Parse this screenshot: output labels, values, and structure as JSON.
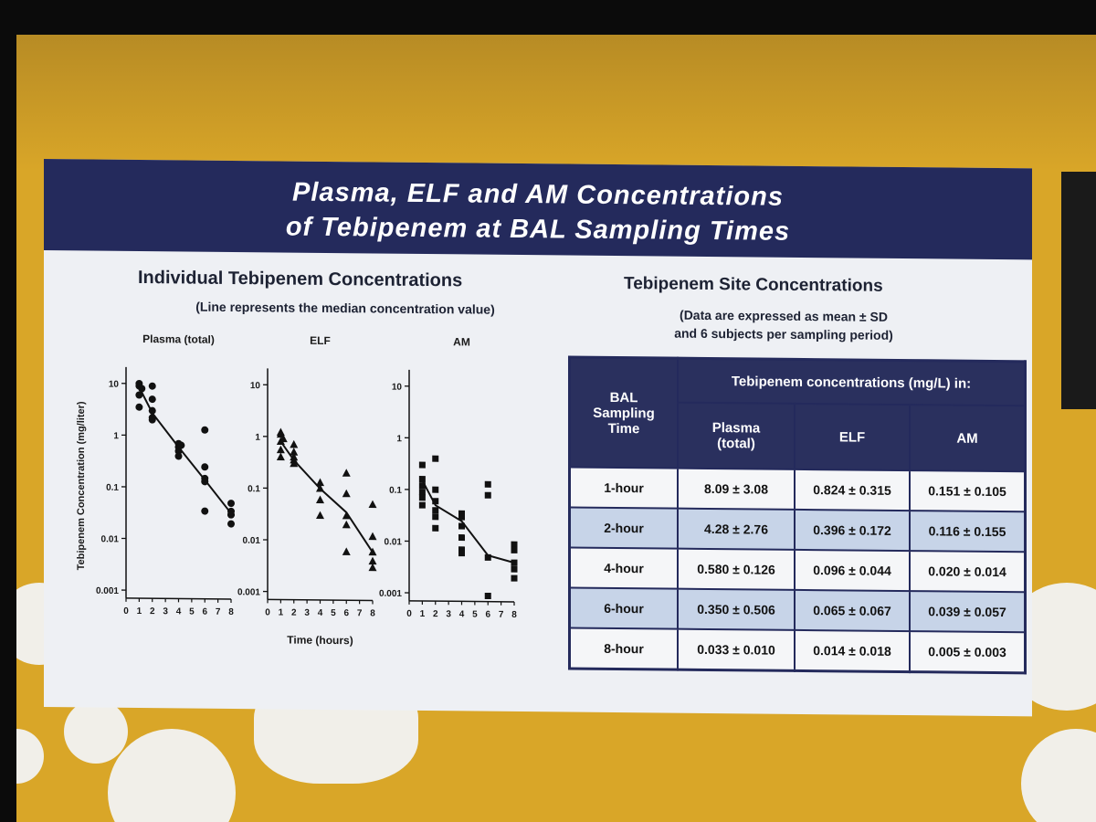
{
  "slide": {
    "title_line1": "Plasma, ELF and AM Concentrations",
    "title_line2": "of  Tebipenem at BAL Sampling Times"
  },
  "left_panel": {
    "heading": "Individual Tebipenem Concentrations",
    "subheading": "(Line represents the median concentration value)"
  },
  "right_panel": {
    "heading": "Tebipenem Site Concentrations",
    "note_line1": "(Data are expressed as mean ± SD",
    "note_line2": "and 6 subjects per sampling period)"
  },
  "table": {
    "row_header": [
      "BAL",
      "Sampling",
      "Time"
    ],
    "group_header": "Tebipenem concentrations (mg/L) in:",
    "columns": [
      [
        "Plasma",
        "(total)"
      ],
      [
        "ELF"
      ],
      [
        "AM"
      ]
    ],
    "rows": [
      {
        "time": "1-hour",
        "plasma": "8.09 ± 3.08",
        "elf": "0.824 ± 0.315",
        "am": "0.151 ± 0.105"
      },
      {
        "time": "2-hour",
        "plasma": "4.28 ± 2.76",
        "elf": "0.396 ± 0.172",
        "am": "0.116 ± 0.155"
      },
      {
        "time": "4-hour",
        "plasma": "0.580 ± 0.126",
        "elf": "0.096 ± 0.044",
        "am": "0.020 ± 0.014"
      },
      {
        "time": "6-hour",
        "plasma": "0.350 ± 0.506",
        "elf": "0.065 ± 0.067",
        "am": "0.039 ± 0.057"
      },
      {
        "time": "8-hour",
        "plasma": "0.033 ± 0.010",
        "elf": "0.014 ± 0.018",
        "am": "0.005 ± 0.003"
      }
    ]
  },
  "colors": {
    "title_bar": "#242a5c",
    "slide_bg": "#eef0f4",
    "screen_bg": "#d9a628",
    "row_alt": "#c7d4e8"
  },
  "chart_data": [
    {
      "type": "scatter",
      "title": "Plasma (total)",
      "ylabel": "Tebipenem Concentration (mg/liter)",
      "xlabel": "",
      "yscale": "log",
      "ylim": [
        0.0007,
        15
      ],
      "xlim": [
        0,
        8
      ],
      "x_ticks": [
        "0",
        "1",
        "2",
        "3",
        "4",
        "5",
        "6",
        "7",
        "8"
      ],
      "y_ticks": [
        "10",
        "1",
        "0.1",
        "0.01",
        "0.001"
      ],
      "marker": "circle",
      "points": [
        [
          1,
          10
        ],
        [
          1,
          9
        ],
        [
          1,
          6
        ],
        [
          1,
          3.5
        ],
        [
          1.2,
          8
        ],
        [
          2,
          9
        ],
        [
          2,
          5
        ],
        [
          2,
          3
        ],
        [
          2,
          2.2
        ],
        [
          2,
          2
        ],
        [
          4,
          0.7
        ],
        [
          4,
          0.6
        ],
        [
          4,
          0.5
        ],
        [
          4,
          0.4
        ],
        [
          4.2,
          0.65
        ],
        [
          6,
          1.3
        ],
        [
          6,
          0.25
        ],
        [
          6,
          0.15
        ],
        [
          6,
          0.13
        ],
        [
          6,
          0.035
        ],
        [
          8,
          0.05
        ],
        [
          8,
          0.035
        ],
        [
          8,
          0.03
        ],
        [
          8,
          0.03
        ],
        [
          8,
          0.02
        ]
      ],
      "median_line": [
        [
          1,
          8.5
        ],
        [
          2,
          2.7
        ],
        [
          4,
          0.6
        ],
        [
          6,
          0.14
        ],
        [
          8,
          0.032
        ]
      ]
    },
    {
      "type": "scatter",
      "title": "ELF",
      "xlabel": "Time (hours)",
      "yscale": "log",
      "ylim": [
        0.0007,
        15
      ],
      "xlim": [
        0,
        8
      ],
      "x_ticks": [
        "0",
        "1",
        "2",
        "3",
        "4",
        "5",
        "6",
        "7",
        "8"
      ],
      "y_ticks": [
        "10",
        "1",
        "0.1",
        "0.01",
        "0.001"
      ],
      "marker": "triangle",
      "points": [
        [
          1,
          1.2
        ],
        [
          1,
          1.1
        ],
        [
          1,
          0.8
        ],
        [
          1,
          0.55
        ],
        [
          1,
          0.4
        ],
        [
          1.2,
          0.9
        ],
        [
          2,
          0.7
        ],
        [
          2,
          0.5
        ],
        [
          2,
          0.4
        ],
        [
          2,
          0.35
        ],
        [
          2,
          0.3
        ],
        [
          4,
          0.13
        ],
        [
          4,
          0.1
        ],
        [
          4,
          0.06
        ],
        [
          4,
          0.03
        ],
        [
          6,
          0.2
        ],
        [
          6,
          0.08
        ],
        [
          6,
          0.03
        ],
        [
          6,
          0.02
        ],
        [
          6,
          0.006
        ],
        [
          8,
          0.05
        ],
        [
          8,
          0.012
        ],
        [
          8,
          0.006
        ],
        [
          8,
          0.004
        ],
        [
          8,
          0.003
        ]
      ],
      "median_line": [
        [
          1,
          0.8
        ],
        [
          2,
          0.35
        ],
        [
          4,
          0.1
        ],
        [
          6,
          0.035
        ],
        [
          8,
          0.006
        ]
      ]
    },
    {
      "type": "scatter",
      "title": "AM",
      "xlabel": "",
      "yscale": "log",
      "ylim": [
        0.0007,
        15
      ],
      "xlim": [
        0,
        8
      ],
      "x_ticks": [
        "0",
        "1",
        "2",
        "3",
        "4",
        "5",
        "6",
        "7",
        "8"
      ],
      "y_ticks": [
        "10",
        "1",
        "0.1",
        "0.01",
        "0.001"
      ],
      "marker": "square",
      "points": [
        [
          1,
          0.3
        ],
        [
          1,
          0.16
        ],
        [
          1,
          0.12
        ],
        [
          1,
          0.09
        ],
        [
          1,
          0.07
        ],
        [
          1,
          0.05
        ],
        [
          2,
          0.4
        ],
        [
          2,
          0.1
        ],
        [
          2,
          0.06
        ],
        [
          2,
          0.04
        ],
        [
          2,
          0.03
        ],
        [
          2,
          0.018
        ],
        [
          4,
          0.035
        ],
        [
          4,
          0.03
        ],
        [
          4,
          0.02
        ],
        [
          4,
          0.012
        ],
        [
          4,
          0.007
        ],
        [
          4,
          0.006
        ],
        [
          6,
          0.13
        ],
        [
          6,
          0.08
        ],
        [
          6,
          0.005
        ],
        [
          6,
          0.0009
        ],
        [
          8,
          0.009
        ],
        [
          8,
          0.007
        ],
        [
          8,
          0.004
        ],
        [
          8,
          0.003
        ],
        [
          8,
          0.002
        ]
      ],
      "median_line": [
        [
          1,
          0.15
        ],
        [
          2,
          0.05
        ],
        [
          4,
          0.025
        ],
        [
          6,
          0.0055
        ],
        [
          8,
          0.004
        ]
      ]
    }
  ]
}
